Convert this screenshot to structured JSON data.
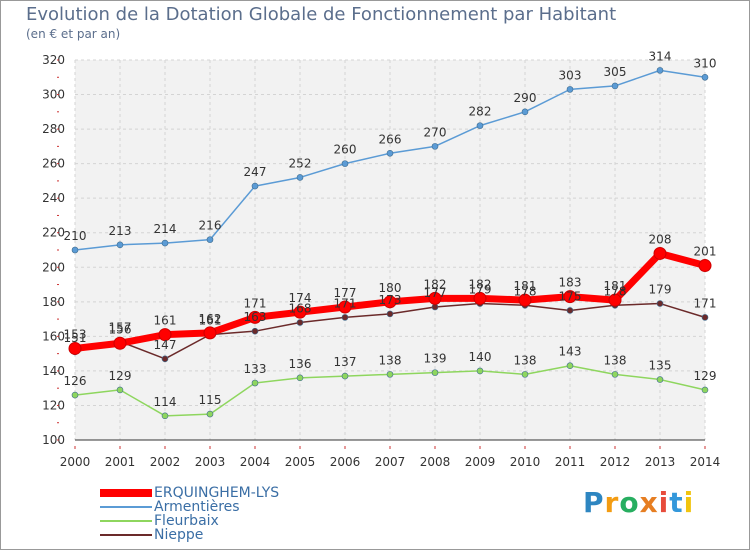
{
  "chart_data": {
    "type": "line",
    "title": "Evolution de la Dotation Globale de Fonctionnement par Habitant",
    "subtitle": "(en € et par an)",
    "xlabel": "",
    "ylabel": "",
    "x": [
      "2000",
      "2001",
      "2002",
      "2003",
      "2004",
      "2005",
      "2006",
      "2007",
      "2008",
      "2009",
      "2010",
      "2011",
      "2012",
      "2013",
      "2014"
    ],
    "ylim": [
      100,
      320
    ],
    "yticks": [
      100,
      120,
      140,
      160,
      180,
      200,
      220,
      240,
      260,
      280,
      300,
      320
    ],
    "grid": true,
    "legend_position": "bottom-left",
    "series": [
      {
        "name": "ERQUINGHEM-LYS",
        "color": "#ff0000",
        "values": [
          153,
          156,
          161,
          162,
          171,
          174,
          177,
          180,
          182,
          182,
          181,
          183,
          181,
          208,
          201
        ]
      },
      {
        "name": "Armentières",
        "color": "#5b9bd5",
        "values": [
          210,
          213,
          214,
          216,
          247,
          252,
          260,
          266,
          270,
          282,
          290,
          303,
          305,
          314,
          310
        ]
      },
      {
        "name": "Fleurbaix",
        "color": "#8ed65e",
        "values": [
          126,
          129,
          114,
          115,
          133,
          136,
          137,
          138,
          139,
          140,
          138,
          143,
          138,
          135,
          129
        ]
      },
      {
        "name": "Nieppe",
        "color": "#6b2a2a",
        "values": [
          151,
          157,
          147,
          161,
          163,
          168,
          171,
          173,
          177,
          179,
          178,
          175,
          178,
          179,
          171
        ]
      }
    ]
  },
  "logo": {
    "letters": [
      "P",
      "r",
      "o",
      "x",
      "i",
      "t",
      "i"
    ],
    "colors": [
      "#2e86c1",
      "#f39c12",
      "#27ae60",
      "#e67e22",
      "#e74c3c",
      "#3498db",
      "#f1c40f"
    ]
  }
}
